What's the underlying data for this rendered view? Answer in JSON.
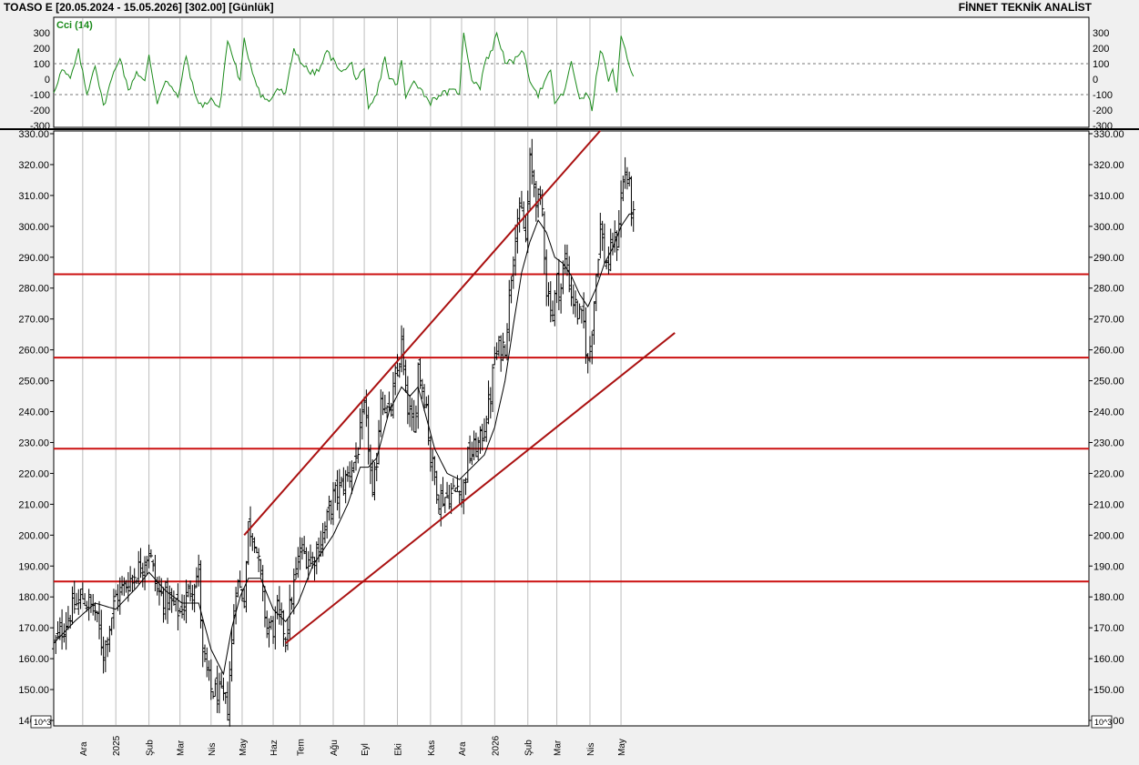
{
  "header": {
    "title": "TOASO E  [20.05.2024 - 15.05.2026]  [302.00]  [Günlük]",
    "brand": "FİNNET TEKNİK ANALİST"
  },
  "indicator": {
    "name": "Cci (14)",
    "color": "#1a8a1a",
    "ylim": [
      -300,
      300
    ],
    "ticks": [
      "300",
      "200",
      "100",
      "0",
      "-100",
      "-200",
      "-300"
    ],
    "tick_values": [
      300,
      200,
      100,
      0,
      -100,
      -200,
      -300
    ],
    "reference_lines": [
      100,
      -100
    ]
  },
  "chart_data": {
    "type": "ohlc",
    "title": "",
    "ylim": [
      140,
      330
    ],
    "y_ticks": [
      "330.00",
      "320.00",
      "310.00",
      "300.00",
      "290.00",
      "280.00",
      "270.00",
      "260.00",
      "250.00",
      "240.00",
      "230.00",
      "220.00",
      "210.00",
      "200.00",
      "190.00",
      "180.00",
      "170.00",
      "160.00",
      "150.00",
      "140.00"
    ],
    "y_tick_values": [
      330,
      320,
      310,
      300,
      290,
      280,
      270,
      260,
      250,
      240,
      230,
      220,
      210,
      200,
      190,
      180,
      170,
      160,
      150,
      140
    ],
    "scale_label": "10^3",
    "x_range": [
      0,
      500
    ],
    "x_ticks": [
      {
        "label": "Ara",
        "x": 14
      },
      {
        "label": "2025",
        "x": 30
      },
      {
        "label": "Şub",
        "x": 46
      },
      {
        "label": "Mar",
        "x": 61
      },
      {
        "label": "Nis",
        "x": 76
      },
      {
        "label": "May",
        "x": 91
      },
      {
        "label": "Haz",
        "x": 106
      },
      {
        "label": "Tem",
        "x": 119
      },
      {
        "label": "Ağu",
        "x": 135
      },
      {
        "label": "Eyl",
        "x": 150
      },
      {
        "label": "Eki",
        "x": 166
      },
      {
        "label": "Kas",
        "x": 182
      },
      {
        "label": "Ara",
        "x": 197
      },
      {
        "label": "2026",
        "x": 213
      },
      {
        "label": "Şub",
        "x": 229
      },
      {
        "label": "Mar",
        "x": 243
      },
      {
        "label": "Nis",
        "x": 259
      },
      {
        "label": "May",
        "x": 274
      }
    ],
    "horizontal_lines": [
      284.5,
      257.5,
      228,
      185
    ],
    "trend_lines": [
      {
        "from": [
          112,
          165
        ],
        "to": [
          300,
          265.5
        ]
      },
      {
        "from": [
          92,
          200
        ],
        "to": [
          264,
          331
        ]
      }
    ],
    "price_anchors": [
      [
        0,
        164
      ],
      [
        8,
        175
      ],
      [
        14,
        180
      ],
      [
        20,
        175
      ],
      [
        24,
        162
      ],
      [
        30,
        180
      ],
      [
        36,
        185
      ],
      [
        42,
        190
      ],
      [
        46,
        195
      ],
      [
        50,
        182
      ],
      [
        56,
        178
      ],
      [
        61,
        175
      ],
      [
        66,
        183
      ],
      [
        70,
        188
      ],
      [
        72,
        160
      ],
      [
        76,
        150
      ],
      [
        80,
        148
      ],
      [
        84,
        145
      ],
      [
        88,
        185
      ],
      [
        92,
        180
      ],
      [
        94,
        203
      ],
      [
        97,
        200
      ],
      [
        100,
        185
      ],
      [
        103,
        170
      ],
      [
        106,
        170
      ],
      [
        108,
        175
      ],
      [
        112,
        168
      ],
      [
        115,
        180
      ],
      [
        119,
        195
      ],
      [
        125,
        192
      ],
      [
        130,
        200
      ],
      [
        135,
        212
      ],
      [
        141,
        218
      ],
      [
        146,
        225
      ],
      [
        150,
        240
      ],
      [
        152,
        230
      ],
      [
        154,
        210
      ],
      [
        156,
        225
      ],
      [
        158,
        246
      ],
      [
        162,
        238
      ],
      [
        166,
        253
      ],
      [
        168,
        262
      ],
      [
        170,
        245
      ],
      [
        174,
        232
      ],
      [
        176,
        255
      ],
      [
        180,
        242
      ],
      [
        182,
        225
      ],
      [
        186,
        212
      ],
      [
        192,
        213
      ],
      [
        196,
        217
      ],
      [
        197,
        212
      ],
      [
        200,
        225
      ],
      [
        206,
        230
      ],
      [
        211,
        245
      ],
      [
        213,
        258
      ],
      [
        218,
        262
      ],
      [
        221,
        285
      ],
      [
        223,
        300
      ],
      [
        226,
        304
      ],
      [
        228,
        295
      ],
      [
        230,
        320
      ],
      [
        233,
        310
      ],
      [
        236,
        305
      ],
      [
        238,
        280
      ],
      [
        241,
        272
      ],
      [
        243,
        282
      ],
      [
        245,
        280
      ],
      [
        247,
        290
      ],
      [
        250,
        278
      ],
      [
        253,
        272
      ],
      [
        256,
        268
      ],
      [
        258,
        255
      ],
      [
        260,
        268
      ],
      [
        262,
        285
      ],
      [
        264,
        300
      ],
      [
        266,
        290
      ],
      [
        268,
        287
      ],
      [
        270,
        295
      ],
      [
        272,
        295
      ],
      [
        274,
        310
      ],
      [
        276,
        318
      ],
      [
        278,
        312
      ],
      [
        280,
        302
      ]
    ],
    "ma_anchors": [
      [
        0,
        165
      ],
      [
        10,
        172
      ],
      [
        20,
        178
      ],
      [
        30,
        176
      ],
      [
        40,
        183
      ],
      [
        46,
        188
      ],
      [
        54,
        182
      ],
      [
        62,
        178
      ],
      [
        70,
        178
      ],
      [
        76,
        163
      ],
      [
        82,
        155
      ],
      [
        86,
        170
      ],
      [
        90,
        180
      ],
      [
        94,
        186
      ],
      [
        100,
        186
      ],
      [
        106,
        176
      ],
      [
        112,
        172
      ],
      [
        118,
        178
      ],
      [
        125,
        190
      ],
      [
        135,
        200
      ],
      [
        142,
        210
      ],
      [
        148,
        222
      ],
      [
        152,
        222
      ],
      [
        156,
        225
      ],
      [
        162,
        240
      ],
      [
        168,
        248
      ],
      [
        172,
        245
      ],
      [
        176,
        248
      ],
      [
        180,
        238
      ],
      [
        184,
        228
      ],
      [
        190,
        220
      ],
      [
        196,
        218
      ],
      [
        202,
        222
      ],
      [
        208,
        226
      ],
      [
        213,
        235
      ],
      [
        218,
        250
      ],
      [
        222,
        268
      ],
      [
        226,
        285
      ],
      [
        230,
        295
      ],
      [
        234,
        302
      ],
      [
        238,
        298
      ],
      [
        242,
        290
      ],
      [
        246,
        288
      ],
      [
        250,
        284
      ],
      [
        254,
        278
      ],
      [
        258,
        274
      ],
      [
        262,
        280
      ],
      [
        266,
        288
      ],
      [
        270,
        293
      ],
      [
        274,
        300
      ],
      [
        278,
        304
      ],
      [
        280,
        304
      ]
    ],
    "cci_anchors": [
      [
        0,
        -80
      ],
      [
        4,
        60
      ],
      [
        8,
        0
      ],
      [
        12,
        180
      ],
      [
        16,
        -100
      ],
      [
        20,
        100
      ],
      [
        24,
        -180
      ],
      [
        28,
        0
      ],
      [
        32,
        150
      ],
      [
        36,
        -80
      ],
      [
        40,
        50
      ],
      [
        44,
        -20
      ],
      [
        46,
        150
      ],
      [
        50,
        -150
      ],
      [
        54,
        0
      ],
      [
        60,
        -120
      ],
      [
        64,
        150
      ],
      [
        68,
        -100
      ],
      [
        72,
        -180
      ],
      [
        76,
        -120
      ],
      [
        80,
        -200
      ],
      [
        84,
        250
      ],
      [
        88,
        80
      ],
      [
        90,
        -20
      ],
      [
        92,
        250
      ],
      [
        96,
        50
      ],
      [
        100,
        -100
      ],
      [
        104,
        -150
      ],
      [
        108,
        -60
      ],
      [
        112,
        -100
      ],
      [
        116,
        200
      ],
      [
        120,
        100
      ],
      [
        124,
        40
      ],
      [
        128,
        50
      ],
      [
        132,
        180
      ],
      [
        136,
        100
      ],
      [
        140,
        50
      ],
      [
        144,
        100
      ],
      [
        146,
        0
      ],
      [
        150,
        50
      ],
      [
        152,
        -200
      ],
      [
        156,
        -100
      ],
      [
        160,
        150
      ],
      [
        162,
        0
      ],
      [
        166,
        -30
      ],
      [
        168,
        120
      ],
      [
        170,
        -130
      ],
      [
        174,
        0
      ],
      [
        178,
        -80
      ],
      [
        182,
        -150
      ],
      [
        186,
        -100
      ],
      [
        192,
        -80
      ],
      [
        196,
        -80
      ],
      [
        198,
        300
      ],
      [
        202,
        0
      ],
      [
        206,
        -50
      ],
      [
        208,
        100
      ],
      [
        212,
        200
      ],
      [
        214,
        300
      ],
      [
        218,
        120
      ],
      [
        222,
        100
      ],
      [
        226,
        200
      ],
      [
        230,
        0
      ],
      [
        234,
        -100
      ],
      [
        238,
        0
      ],
      [
        240,
        50
      ],
      [
        242,
        -150
      ],
      [
        246,
        -100
      ],
      [
        250,
        100
      ],
      [
        254,
        -120
      ],
      [
        258,
        -100
      ],
      [
        260,
        -200
      ],
      [
        264,
        200
      ],
      [
        268,
        0
      ],
      [
        270,
        50
      ],
      [
        272,
        -100
      ],
      [
        274,
        280
      ],
      [
        278,
        100
      ],
      [
        280,
        0
      ]
    ],
    "bars_count": 281
  }
}
